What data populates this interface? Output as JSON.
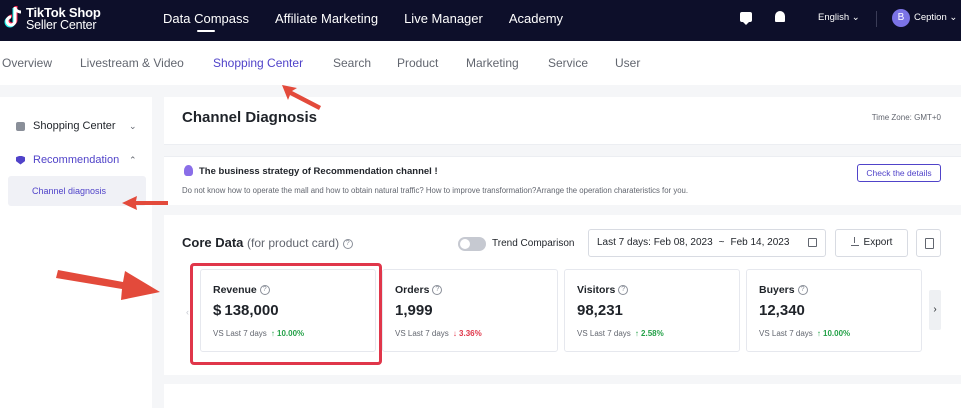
{
  "brand": {
    "line1": "TikTok Shop",
    "line2": "Seller Center"
  },
  "topnav": [
    "Data Compass",
    "Affiliate Marketing",
    "Live Manager",
    "Academy"
  ],
  "top_right": {
    "language": "English ⌄",
    "avatar_letter": "B",
    "user": "Ception ⌄"
  },
  "subnav": [
    "Overview",
    "Livestream & Video",
    "Shopping Center",
    "Search",
    "Product",
    "Marketing",
    "Service",
    "User"
  ],
  "sidebar": {
    "items": [
      {
        "label": "Shopping Center",
        "chevron": "⌄"
      },
      {
        "label": "Recommendation",
        "chevron": "⌃"
      }
    ],
    "sub_item": "Channel diagnosis"
  },
  "header": {
    "title": "Channel Diagnosis",
    "timezone": "Time Zone: GMT+0"
  },
  "banner": {
    "title": "The business strategy of Recommendation channel !",
    "desc": "Do not know how to operate the mall and how to obtain natural traffic? How to improve transformation?Arrange the operation charateristics for you.",
    "button": "Check the details"
  },
  "core": {
    "title": "Core Data",
    "subtitle": "(for product card)",
    "trend_label": "Trend Comparison",
    "date_start": "Last 7 days: Feb 08, 2023",
    "date_sep": "~",
    "date_end": "Feb 14, 2023",
    "export": "Export",
    "metrics": [
      {
        "label": "Revenue",
        "value": "$ 138,000",
        "cmp": "VS Last 7 days",
        "delta": "↑ 10.00%",
        "dir": "up"
      },
      {
        "label": "Orders",
        "value": "1,999",
        "cmp": "VS Last 7 days",
        "delta": "↓ 3.36%",
        "dir": "down"
      },
      {
        "label": "Visitors",
        "value": "98,231",
        "cmp": "VS Last 7 days",
        "delta": "↑ 2.58%",
        "dir": "up"
      },
      {
        "label": "Buyers",
        "value": "12,340",
        "cmp": "VS Last 7 days",
        "delta": "↑ 10.00%",
        "dir": "up"
      }
    ],
    "next_arrow": "›"
  },
  "colors": {
    "accent": "#5043c9",
    "topbar": "#0d0f2a",
    "annotation": "#e0364a",
    "up": "#24a148",
    "down": "#e0364a"
  }
}
